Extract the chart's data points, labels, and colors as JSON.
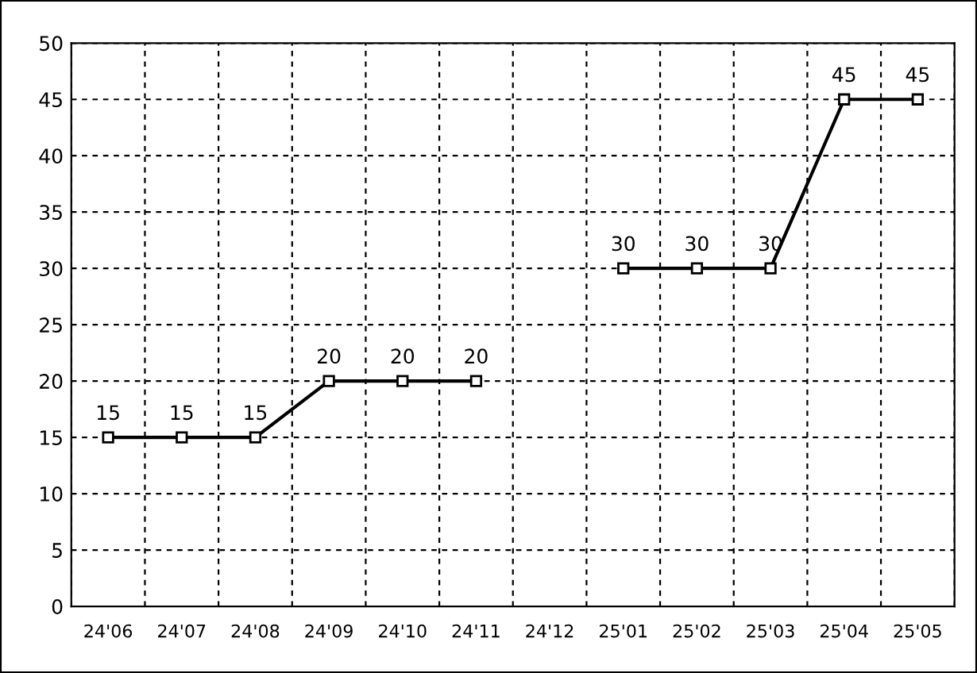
{
  "chart_data": {
    "type": "line",
    "categories": [
      "24'06",
      "24'07",
      "24'08",
      "24'09",
      "24'10",
      "24'11",
      "24'12",
      "25'01",
      "25'02",
      "25'03",
      "25'04",
      "25'05"
    ],
    "series": [
      {
        "color": "#000000",
        "values": [
          15,
          15,
          15,
          20,
          20,
          20,
          null,
          30,
          30,
          30,
          45,
          45
        ]
      }
    ],
    "ylim": [
      0,
      50
    ],
    "yticks": [
      0,
      5,
      10,
      15,
      20,
      25,
      30,
      35,
      40,
      45,
      50
    ],
    "grid": true,
    "marker": "square",
    "line_style": "solid",
    "data_labels": true
  }
}
